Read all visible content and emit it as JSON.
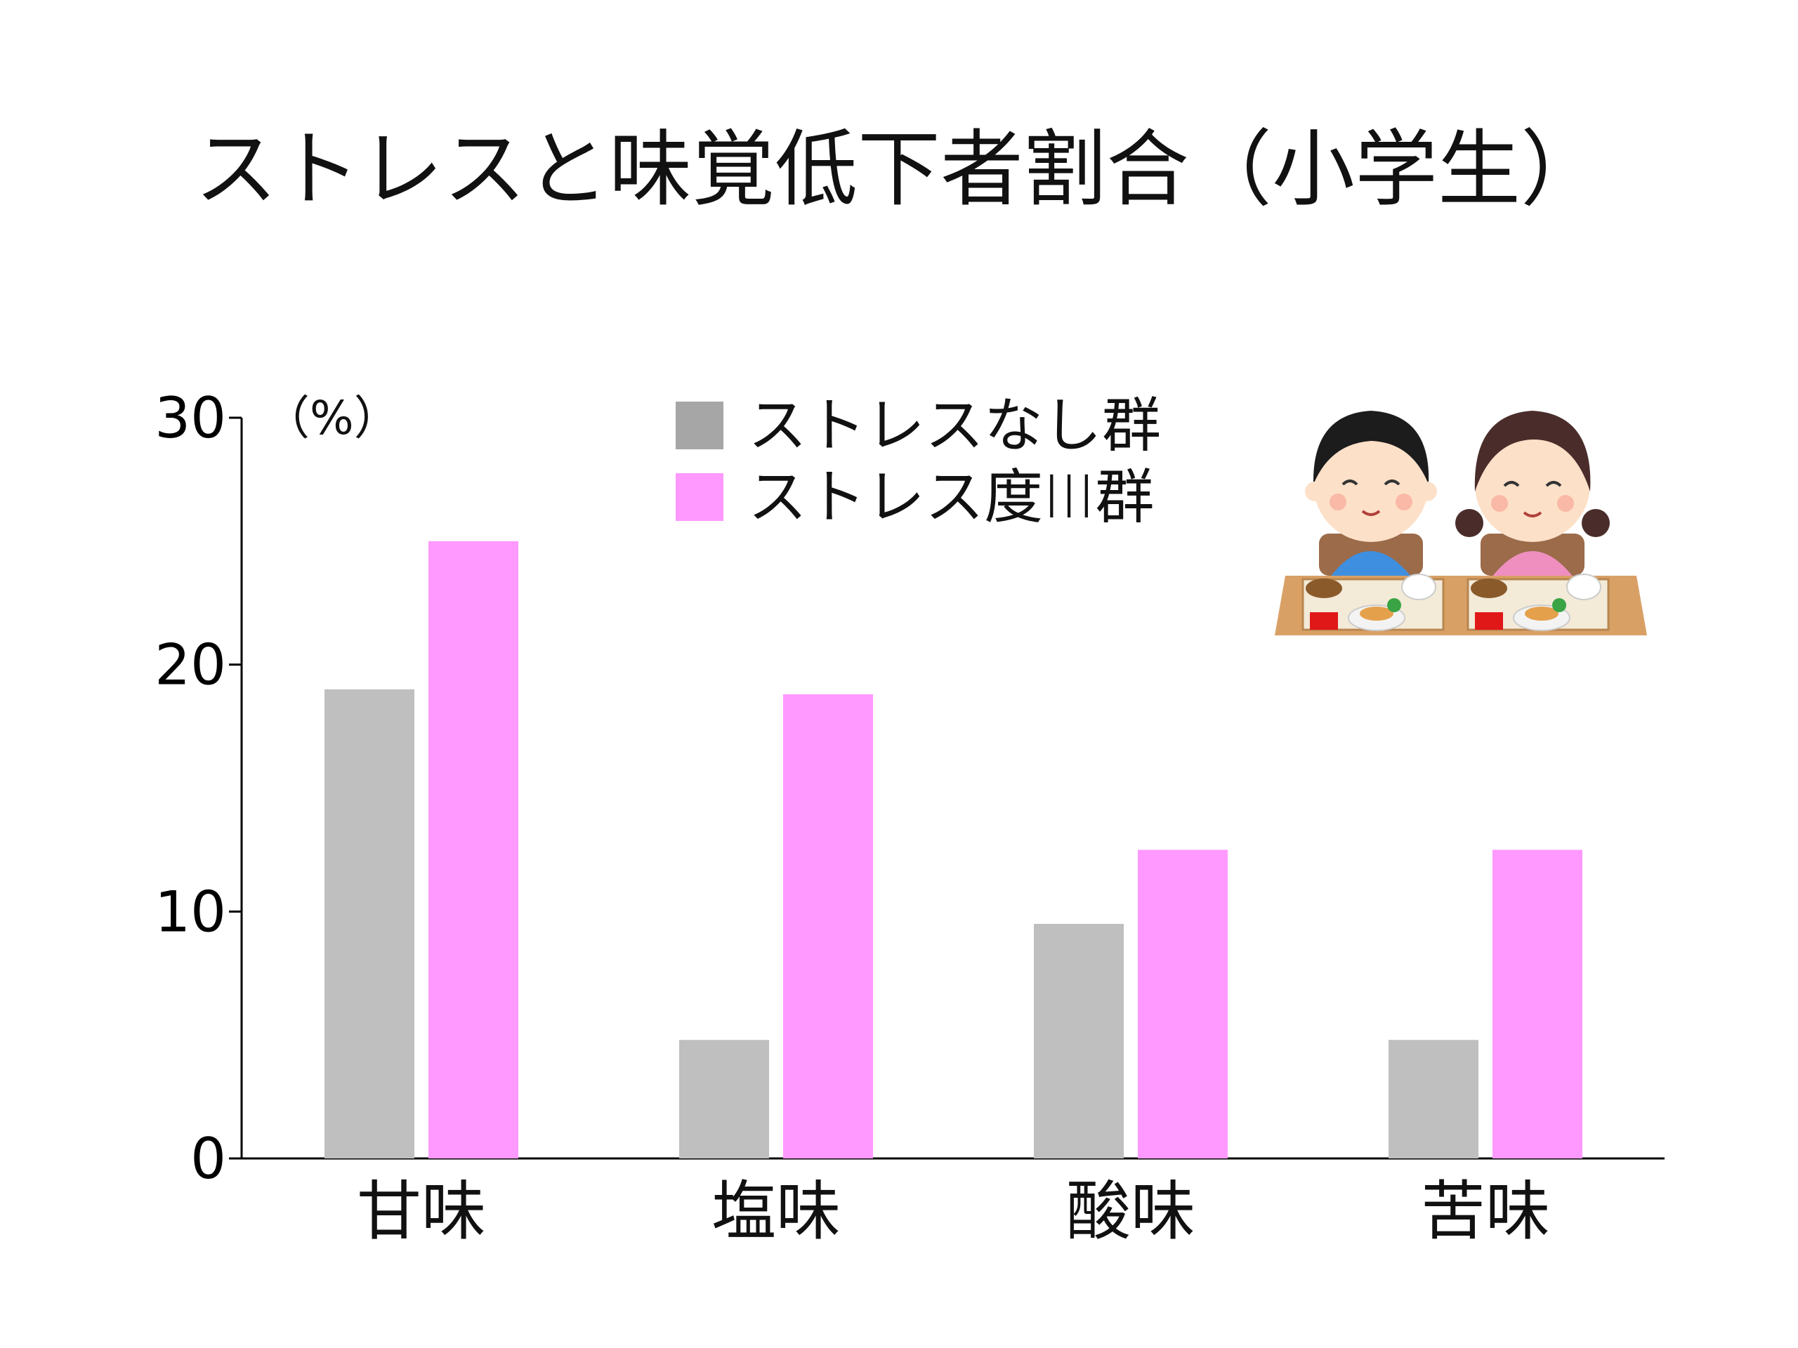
{
  "chart_data": {
    "type": "bar",
    "title": "ストレスと味覚低下者割合（小学生）",
    "ylabel": "（%）",
    "xlabel": "",
    "categories": [
      "甘味",
      "塩味",
      "酸味",
      "苦味"
    ],
    "series": [
      {
        "name": "ストレスなし群",
        "color": "#bfbfbf",
        "legend_color": "#a6a6a6",
        "values": [
          19,
          4.8,
          9.5,
          4.8
        ]
      },
      {
        "name": "ストレス度III群",
        "color": "#ff99ff",
        "legend_color": "#ff99ff",
        "values": [
          25,
          18.8,
          12.5,
          12.5
        ]
      }
    ],
    "ylim": [
      0,
      30
    ],
    "yticks": [
      "0",
      "10",
      "20",
      "30"
    ],
    "grid": false,
    "legend_position": "top-center"
  },
  "illustration": {
    "icon": "children-eating-school-lunch-icon"
  }
}
